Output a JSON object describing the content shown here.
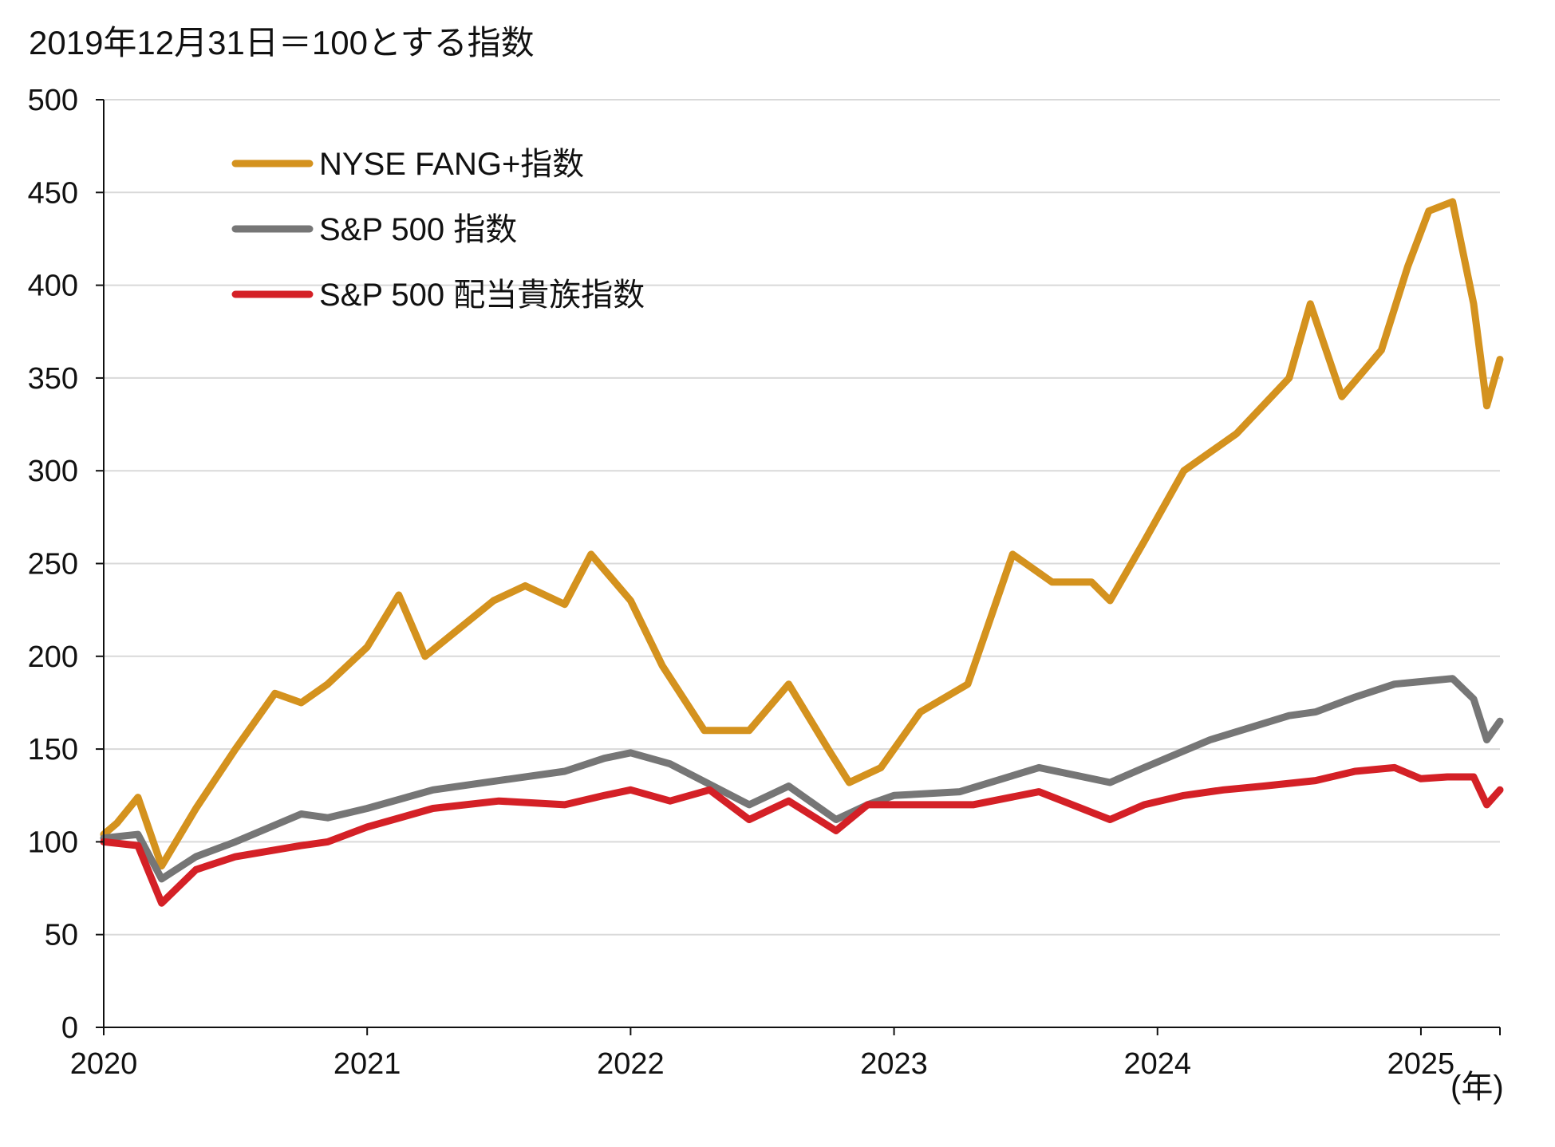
{
  "chart_data": {
    "type": "line",
    "title": "2019年12月31日＝100とする指数",
    "xlabel": "(年)",
    "ylabel": "",
    "x_ticks": [
      "2020",
      "2021",
      "2022",
      "2023",
      "2024",
      "2025"
    ],
    "xlim": [
      2020.0,
      2025.3
    ],
    "ylim": [
      0,
      500
    ],
    "y_ticks": [
      0,
      50,
      100,
      150,
      200,
      250,
      300,
      350,
      400,
      450,
      500
    ],
    "grid": "horizontal",
    "legend_position": "top-left",
    "series": [
      {
        "name": "NYSE FANG+指数",
        "color": "#d4921e",
        "x": [
          2020.0,
          2020.05,
          2020.13,
          2020.22,
          2020.35,
          2020.5,
          2020.65,
          2020.75,
          2020.85,
          2021.0,
          2021.12,
          2021.22,
          2021.35,
          2021.48,
          2021.6,
          2021.75,
          2021.85,
          2022.0,
          2022.12,
          2022.28,
          2022.45,
          2022.6,
          2022.75,
          2022.83,
          2022.95,
          2023.1,
          2023.28,
          2023.45,
          2023.6,
          2023.75,
          2023.82,
          2023.95,
          2024.1,
          2024.3,
          2024.5,
          2024.58,
          2024.7,
          2024.85,
          2024.95,
          2025.03,
          2025.12,
          2025.2,
          2025.25,
          2025.3
        ],
        "values": [
          104,
          110,
          124,
          87,
          118,
          150,
          180,
          175,
          185,
          205,
          233,
          200,
          215,
          230,
          238,
          228,
          255,
          230,
          195,
          160,
          160,
          185,
          150,
          132,
          140,
          170,
          185,
          255,
          240,
          240,
          230,
          262,
          300,
          320,
          350,
          390,
          340,
          365,
          410,
          440,
          445,
          390,
          335,
          360
        ]
      },
      {
        "name": "S&P 500 指数",
        "color": "#767676",
        "x": [
          2020.0,
          2020.13,
          2020.22,
          2020.35,
          2020.5,
          2020.75,
          2020.85,
          2021.0,
          2021.25,
          2021.5,
          2021.75,
          2021.9,
          2022.0,
          2022.15,
          2022.45,
          2022.6,
          2022.78,
          2022.9,
          2023.0,
          2023.25,
          2023.55,
          2023.82,
          2023.95,
          2024.2,
          2024.5,
          2024.6,
          2024.75,
          2024.9,
          2025.12,
          2025.2,
          2025.25,
          2025.3
        ],
        "values": [
          102,
          104,
          80,
          92,
          100,
          115,
          113,
          118,
          128,
          133,
          138,
          145,
          148,
          142,
          120,
          130,
          112,
          120,
          125,
          127,
          140,
          132,
          140,
          155,
          168,
          170,
          178,
          185,
          188,
          177,
          155,
          165
        ]
      },
      {
        "name": "S&P 500 配当貴族指数",
        "color": "#d42026",
        "x": [
          2020.0,
          2020.13,
          2020.22,
          2020.35,
          2020.5,
          2020.75,
          2020.85,
          2021.0,
          2021.25,
          2021.5,
          2021.75,
          2021.9,
          2022.0,
          2022.15,
          2022.3,
          2022.45,
          2022.6,
          2022.78,
          2022.9,
          2023.0,
          2023.3,
          2023.55,
          2023.82,
          2023.95,
          2024.1,
          2024.25,
          2024.4,
          2024.6,
          2024.75,
          2024.9,
          2025.0,
          2025.1,
          2025.2,
          2025.25,
          2025.3
        ],
        "values": [
          100,
          98,
          67,
          85,
          92,
          98,
          100,
          108,
          118,
          122,
          120,
          125,
          128,
          122,
          128,
          112,
          122,
          106,
          120,
          120,
          120,
          127,
          112,
          120,
          125,
          128,
          130,
          133,
          138,
          140,
          134,
          135,
          135,
          120,
          128
        ]
      }
    ]
  }
}
